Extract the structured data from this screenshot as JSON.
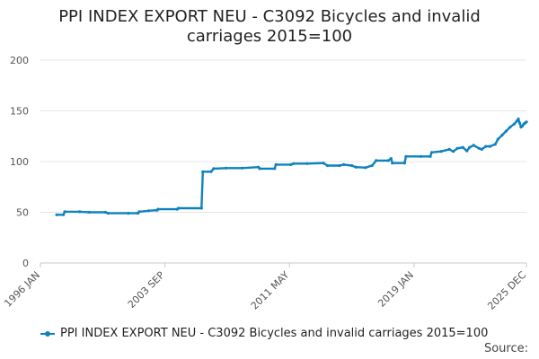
{
  "chart_data": {
    "type": "line",
    "title_lines": [
      "PPI INDEX EXPORT NEU - C3092 Bicycles and invalid",
      "carriages 2015=100"
    ],
    "xlabel": "",
    "ylabel": "",
    "ylim": [
      0,
      200
    ],
    "y_ticks": [
      0,
      50,
      100,
      150,
      200
    ],
    "x_ticks": [
      {
        "label": "1996 JAN",
        "date": 1996.0
      },
      {
        "label": "2003 SEP",
        "date": 2003.667
      },
      {
        "label": "2011 MAY",
        "date": 2011.333
      },
      {
        "label": "2019 JAN",
        "date": 2019.0
      },
      {
        "label": "2025 DEC",
        "date": 2025.917
      }
    ],
    "grid": "horizontal",
    "legend_position": "bottom-left",
    "color": "#0f82be",
    "series": [
      {
        "name": "PPI INDEX EXPORT NEU - C3092 Bicycles and invalid carriages 2015=100",
        "points": [
          [
            "1997-01",
            47.5
          ],
          [
            "1997-06",
            47.5
          ],
          [
            "1997-07",
            50.5
          ],
          [
            "1998-06",
            50.5
          ],
          [
            "1999-01",
            50.0
          ],
          [
            "2000-01",
            50.0
          ],
          [
            "2000-03",
            49.0
          ],
          [
            "2001-06",
            49.0
          ],
          [
            "2002-01",
            49.0
          ],
          [
            "2002-02",
            50.5
          ],
          [
            "2002-09",
            51.5
          ],
          [
            "2003-03",
            52.0
          ],
          [
            "2003-04",
            53.0
          ],
          [
            "2004-06",
            53.0
          ],
          [
            "2004-07",
            54.0
          ],
          [
            "2005-12",
            54.0
          ],
          [
            "2006-01",
            90.0
          ],
          [
            "2006-07",
            90.0
          ],
          [
            "2006-09",
            93.0
          ],
          [
            "2007-06",
            93.5
          ],
          [
            "2008-06",
            93.5
          ],
          [
            "2009-06",
            94.5
          ],
          [
            "2009-07",
            93.0
          ],
          [
            "2010-06",
            93.0
          ],
          [
            "2010-07",
            97.0
          ],
          [
            "2011-06",
            97.0
          ],
          [
            "2011-08",
            98.0
          ],
          [
            "2012-06",
            98.0
          ],
          [
            "2013-06",
            98.5
          ],
          [
            "2013-09",
            96.0
          ],
          [
            "2014-06",
            96.0
          ],
          [
            "2014-09",
            97.0
          ],
          [
            "2015-03",
            96.0
          ],
          [
            "2015-06",
            94.5
          ],
          [
            "2016-01",
            94.0
          ],
          [
            "2016-06",
            96.0
          ],
          [
            "2016-09",
            101.0
          ],
          [
            "2017-06",
            101.0
          ],
          [
            "2017-08",
            103.0
          ],
          [
            "2017-09",
            98.5
          ],
          [
            "2018-06",
            98.5
          ],
          [
            "2018-07",
            105.0
          ],
          [
            "2019-06",
            105.0
          ],
          [
            "2020-01",
            105.0
          ],
          [
            "2020-02",
            109.0
          ],
          [
            "2020-09",
            110.0
          ],
          [
            "2021-03",
            112.0
          ],
          [
            "2021-06",
            110.0
          ],
          [
            "2021-09",
            113.0
          ],
          [
            "2022-01",
            114.0
          ],
          [
            "2022-04",
            110.5
          ],
          [
            "2022-06",
            114.0
          ],
          [
            "2022-09",
            116.0
          ],
          [
            "2023-01",
            113.0
          ],
          [
            "2023-03",
            112.0
          ],
          [
            "2023-06",
            115.0
          ],
          [
            "2023-09",
            115.0
          ],
          [
            "2024-01",
            117.0
          ],
          [
            "2024-03",
            122.0
          ],
          [
            "2024-06",
            126.0
          ],
          [
            "2024-09",
            130.0
          ],
          [
            "2024-12",
            134.0
          ],
          [
            "2025-03",
            137.0
          ],
          [
            "2025-05",
            140.0
          ],
          [
            "2025-06",
            142.0
          ],
          [
            "2025-07",
            138.0
          ],
          [
            "2025-08",
            134.0
          ],
          [
            "2025-09",
            135.0
          ],
          [
            "2025-10",
            137.0
          ],
          [
            "2025-11",
            138.0
          ],
          [
            "2025-12",
            139.0
          ]
        ]
      }
    ]
  },
  "source_label": "Source:"
}
